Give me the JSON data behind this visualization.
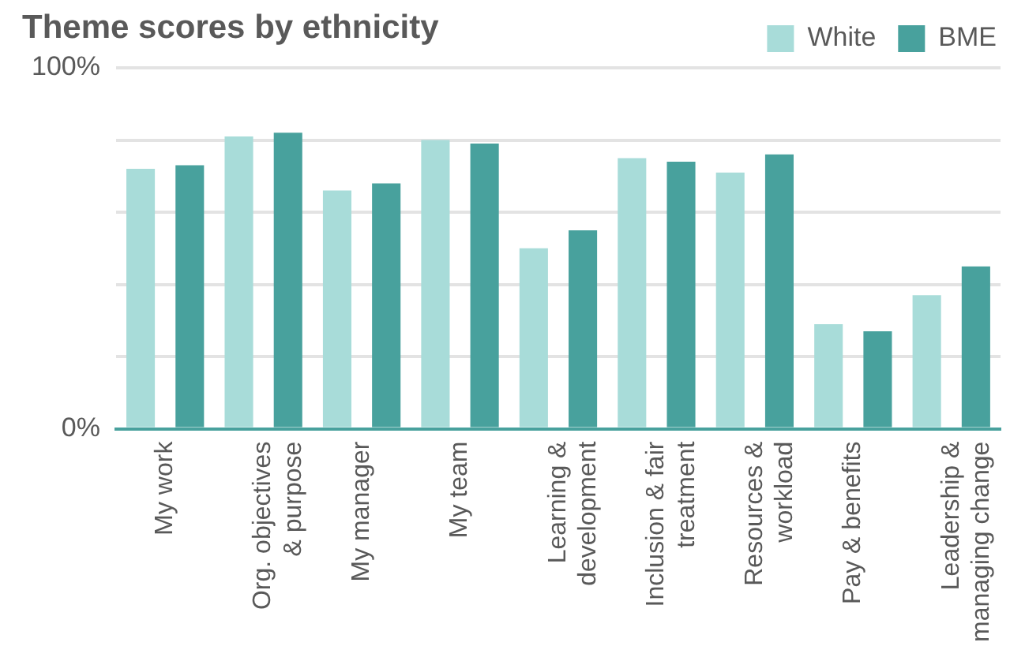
{
  "chart_data": {
    "type": "bar",
    "title": "Theme scores by ethnicity",
    "categories": [
      "My work",
      "Org. objectives & purpose",
      "My manager",
      "My team",
      "Learning & development",
      "Inclusion & fair treatment",
      "Resources & workload",
      "Pay & benefits",
      "Leadership & managing change"
    ],
    "series": [
      {
        "name": "White",
        "color": "#a8dcd9",
        "values": [
          72,
          81,
          66,
          80,
          50,
          75,
          71,
          29,
          37
        ]
      },
      {
        "name": "BME",
        "color": "#48a19d",
        "values": [
          73,
          82,
          68,
          79,
          55,
          74,
          76,
          27,
          45
        ]
      }
    ],
    "ylim": [
      0,
      100
    ],
    "yticks": [
      {
        "value": 0,
        "label": "0%"
      },
      {
        "value": 20,
        "label": null
      },
      {
        "value": 40,
        "label": null
      },
      {
        "value": 60,
        "label": null
      },
      {
        "value": 80,
        "label": null
      },
      {
        "value": 100,
        "label": "100%"
      }
    ],
    "grid": "y",
    "legend": "top right"
  }
}
